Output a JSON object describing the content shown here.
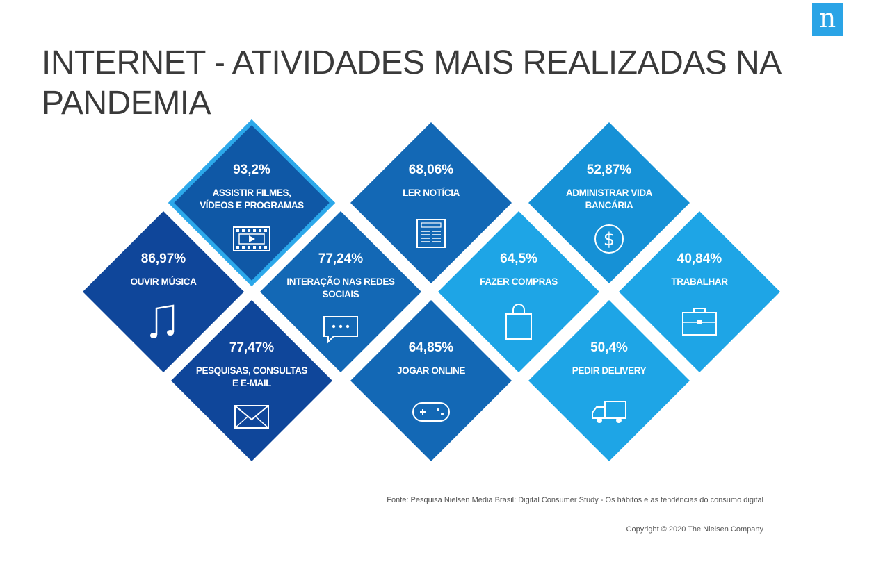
{
  "logo": {
    "glyph": "n"
  },
  "title": "INTERNET - ATIVIDADES MAIS REALIZADAS NA PANDEMIA",
  "chart_data": {
    "type": "table",
    "tiles": [
      {
        "value": 93.2,
        "value_label": "93,2%",
        "label_lines": [
          "ASSISTIR FILMES,",
          "VÍDEOS E PROGRAMAS"
        ],
        "icon": "film-icon",
        "color": "#0f58a6",
        "highlight": true
      },
      {
        "value": 86.97,
        "value_label": "86,97%",
        "label_lines": [
          "OUVIR MÚSICA"
        ],
        "icon": "music-note-icon",
        "color": "#0f469a"
      },
      {
        "value": 77.47,
        "value_label": "77,47%",
        "label_lines": [
          "PESQUISAS, CONSULTAS",
          "E E-MAIL"
        ],
        "icon": "envelope-icon",
        "color": "#0f469a"
      },
      {
        "value": 77.24,
        "value_label": "77,24%",
        "label_lines": [
          "INTERAÇÃO NAS REDES",
          "SOCIAIS"
        ],
        "icon": "chat-icon",
        "color": "#1368b5"
      },
      {
        "value": 68.06,
        "value_label": "68,06%",
        "label_lines": [
          "LER NOTÍCIA"
        ],
        "icon": "newspaper-icon",
        "color": "#1368b5"
      },
      {
        "value": 64.85,
        "value_label": "64,85%",
        "label_lines": [
          "JOGAR ONLINE"
        ],
        "icon": "gamepad-icon",
        "color": "#1368b5"
      },
      {
        "value": 64.5,
        "value_label": "64,5%",
        "label_lines": [
          "FAZER COMPRAS"
        ],
        "icon": "shopping-bag-icon",
        "color": "#1ea5e6"
      },
      {
        "value": 52.87,
        "value_label": "52,87%",
        "label_lines": [
          "ADMINISTRAR  VIDA",
          "BANCÁRIA"
        ],
        "icon": "dollar-icon",
        "color": "#1691d6"
      },
      {
        "value": 50.4,
        "value_label": "50,4%",
        "label_lines": [
          "PEDIR DELIVERY"
        ],
        "icon": "truck-icon",
        "color": "#1ea5e6"
      },
      {
        "value": 40.84,
        "value_label": "40,84%",
        "label_lines": [
          "TRABALHAR"
        ],
        "icon": "briefcase-icon",
        "color": "#1ea5e6"
      }
    ],
    "highlight_border_color": "#2ca8ea"
  },
  "footer": {
    "source": "Fonte: Pesquisa Nielsen Media Brasil: Digital Consumer Study - Os hábitos e as tendências do consumo digital",
    "copyright": "Copyright © 2020  The Nielsen Company"
  }
}
